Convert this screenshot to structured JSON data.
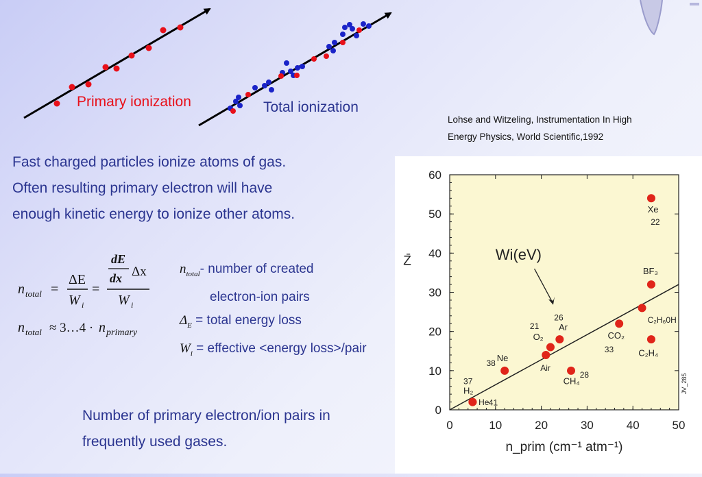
{
  "diagram": {
    "primary_label": "Primary ionization",
    "total_label": "Total ionization"
  },
  "reference": {
    "line1": "Lohse and Witzeling, Instrumentation In High",
    "line2": "Energy Physics, World Scientific,1992"
  },
  "intro": {
    "line1": "Fast charged particles ionize atoms of gas.",
    "line2": "Often resulting primary electron will have",
    "line3": "enough kinetic energy to ionize other atoms."
  },
  "formula": {
    "definitions": [
      {
        "symbol": "n_total",
        "text": "- number of created"
      },
      {
        "symbol": "",
        "text": "electron-ion pairs"
      },
      {
        "symbol": "Δ_E",
        "text": "= total energy loss"
      },
      {
        "symbol": "W_i",
        "text": "= effective <energy loss>/pair"
      }
    ]
  },
  "caption": {
    "line1": "Number of primary electron/ion pairs in",
    "line2": "frequently used gases."
  },
  "colors": {
    "text_blue": "#2b3590",
    "primary_dot": "#e8101a",
    "secondary_dot": "#1a23c8",
    "chart_bg": "#fbf7d2",
    "chart_dot": "#e0251a"
  },
  "chart_data": {
    "type": "scatter",
    "xlabel": "n_prim (cm⁻¹ atm⁻¹)",
    "ylabel": "Z̄",
    "xlim": [
      0,
      50
    ],
    "ylim": [
      0,
      60
    ],
    "xticks": [
      "0",
      "10",
      "20",
      "30",
      "40",
      "50"
    ],
    "yticks": [
      "0",
      "10",
      "20",
      "30",
      "40",
      "50",
      "60"
    ],
    "annotation": "Wi(eV)",
    "side_label": "JV_285",
    "points": [
      {
        "gas": "H2",
        "x": 5,
        "y": 2,
        "wi": "37"
      },
      {
        "gas": "He",
        "x": 5,
        "y": 2,
        "wi": "41"
      },
      {
        "gas": "Ne",
        "x": 12,
        "y": 10,
        "wi": "38"
      },
      {
        "gas": "Air",
        "x": 21,
        "y": 14,
        "wi": ""
      },
      {
        "gas": "O2",
        "x": 22,
        "y": 16,
        "wi": "21"
      },
      {
        "gas": "Ar",
        "x": 24,
        "y": 18,
        "wi": "26"
      },
      {
        "gas": "CH4",
        "x": 26.5,
        "y": 10,
        "wi": "28"
      },
      {
        "gas": "CO2",
        "x": 37,
        "y": 22,
        "wi": "33"
      },
      {
        "gas": "C2H6OH",
        "x": 42,
        "y": 26,
        "wi": ""
      },
      {
        "gas": "BF3",
        "x": 44,
        "y": 32,
        "wi": ""
      },
      {
        "gas": "C2H4",
        "x": 44,
        "y": 18,
        "wi": ""
      },
      {
        "gas": "Xe",
        "x": 44,
        "y": 54,
        "wi": "22"
      }
    ],
    "fit_line": {
      "x": [
        0,
        50
      ],
      "y": [
        0,
        32
      ]
    }
  }
}
